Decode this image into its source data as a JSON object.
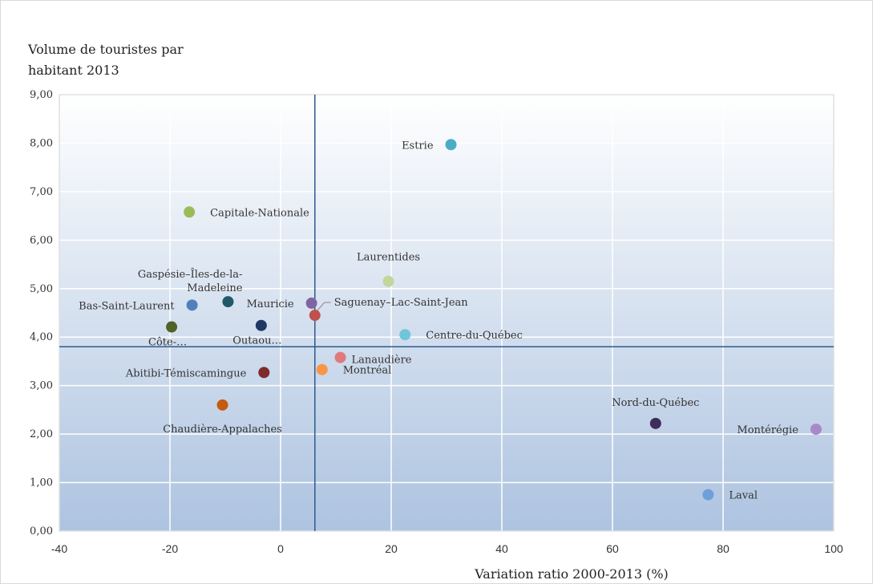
{
  "chart_data": {
    "type": "scatter",
    "title": "",
    "ylabel_lines": [
      "Volume de touristes par",
      "habitant 2013"
    ],
    "xlabel": "Variation ratio 2000-2013 (%)",
    "xlim": [
      -40,
      100
    ],
    "ylim": [
      0,
      9
    ],
    "x_ticks": [
      "-40",
      "-20",
      "0",
      "20",
      "40",
      "60",
      "80",
      "100"
    ],
    "x_tick_values": [
      -40,
      -20,
      0,
      20,
      40,
      60,
      80,
      100
    ],
    "y_ticks": [
      "0,00",
      "1,00",
      "2,00",
      "3,00",
      "4,00",
      "5,00",
      "6,00",
      "7,00",
      "8,00",
      "9,00"
    ],
    "y_tick_values": [
      0,
      1,
      2,
      3,
      4,
      5,
      6,
      7,
      8,
      9
    ],
    "grid": true,
    "reference_lines": {
      "x": 6.2,
      "y": 3.8,
      "color": "#2e5a8c"
    },
    "points": [
      {
        "label_lines": [
          "Estrie"
        ],
        "x": 30.8,
        "y": 7.97,
        "color": "#4bacc6",
        "label_anchor": "right"
      },
      {
        "label_lines": [
          "Capitale-Nationale"
        ],
        "x": -16.5,
        "y": 6.58,
        "color": "#9bbb59",
        "label_anchor": "left"
      },
      {
        "label_lines": [
          "Laurentides"
        ],
        "x": 19.5,
        "y": 5.15,
        "color": "#c3d69b",
        "label_anchor": "above-left"
      },
      {
        "label_lines": [
          "Gaspésie–Îles-de-la-",
          "Madeleine"
        ],
        "x": -9.5,
        "y": 4.73,
        "color": "#215968",
        "label_anchor": "above-left"
      },
      {
        "label_lines": [
          "Bas-Saint-Laurent"
        ],
        "x": -16.0,
        "y": 4.66,
        "color": "#4f81bd",
        "label_anchor": "right"
      },
      {
        "label_lines": [
          "Mauricie"
        ],
        "x": 5.6,
        "y": 4.7,
        "color": "#8064a2",
        "label_anchor": "right"
      },
      {
        "label_lines": [
          "Saguenay–Lac-Saint-Jean"
        ],
        "x": 6.2,
        "y": 4.45,
        "color": "#c0504d",
        "label_anchor": "leader"
      },
      {
        "label_lines": [
          "Outaou…"
        ],
        "x": -3.5,
        "y": 4.24,
        "color": "#1f3864",
        "label_anchor": "below"
      },
      {
        "label_lines": [
          "Côte-…"
        ],
        "x": -19.7,
        "y": 4.21,
        "color": "#4f6228",
        "label_anchor": "below"
      },
      {
        "label_lines": [
          "Centre-du-Québec"
        ],
        "x": 22.5,
        "y": 4.05,
        "color": "#71c5d8",
        "label_anchor": "left"
      },
      {
        "label_lines": [
          "Lanaudière"
        ],
        "x": 10.8,
        "y": 3.58,
        "color": "#e07a7a",
        "label_anchor": "below-left"
      },
      {
        "label_lines": [
          "Montréal"
        ],
        "x": 7.5,
        "y": 3.33,
        "color": "#f79646",
        "label_anchor": "left"
      },
      {
        "label_lines": [
          "Abitibi-Témiscamingue"
        ],
        "x": -3.0,
        "y": 3.27,
        "color": "#7f2a2a",
        "label_anchor": "right"
      },
      {
        "label_lines": [
          "Chaudière-Appalaches"
        ],
        "x": -10.5,
        "y": 2.6,
        "color": "#c55a11",
        "label_anchor": "below"
      },
      {
        "label_lines": [
          "Nord-du-Québec"
        ],
        "x": 67.8,
        "y": 2.22,
        "color": "#3f2d5a",
        "label_anchor": "above"
      },
      {
        "label_lines": [
          "Montérégie"
        ],
        "x": 96.8,
        "y": 2.1,
        "color": "#a888c8",
        "label_anchor": "right"
      },
      {
        "label_lines": [
          "Laval"
        ],
        "x": 77.3,
        "y": 0.75,
        "color": "#6f9fd8",
        "label_anchor": "left"
      }
    ]
  }
}
